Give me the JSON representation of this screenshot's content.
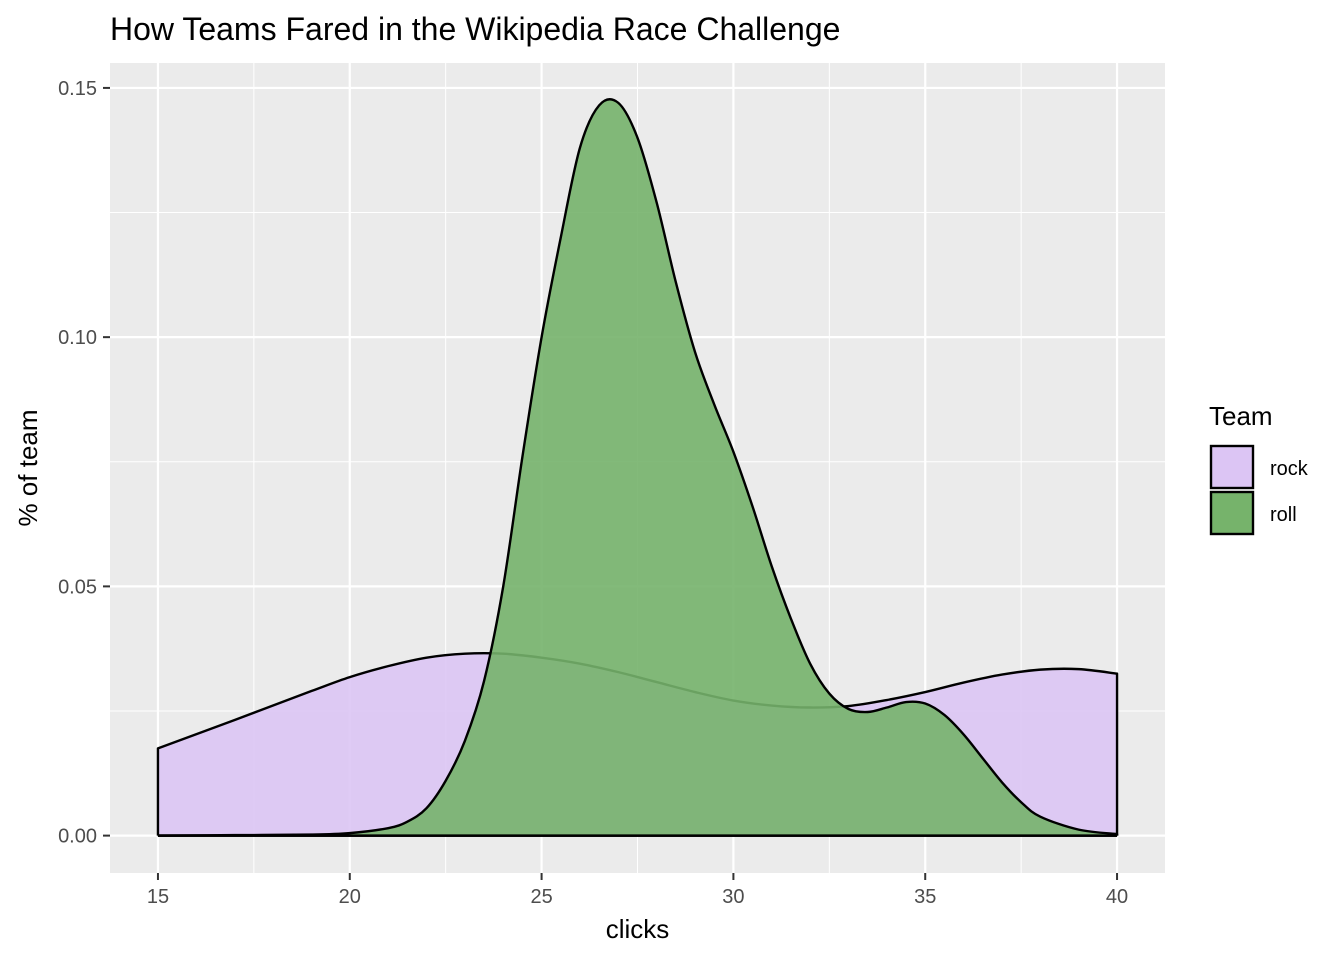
{
  "chart_data": {
    "type": "area",
    "title": "How Teams Fared in the Wikipedia Race Challenge",
    "xlabel": "clicks",
    "ylabel": "% of team",
    "xlim": [
      13.75,
      41.25
    ],
    "ylim": [
      -0.0075,
      0.155
    ],
    "x_ticks": [
      15,
      20,
      25,
      30,
      35,
      40
    ],
    "x_tick_labels": [
      "15",
      "20",
      "25",
      "30",
      "35",
      "40"
    ],
    "y_ticks": [
      0,
      0.05,
      0.1,
      0.15
    ],
    "y_tick_labels": [
      "0.00",
      "0.05",
      "0.10",
      "0.15"
    ],
    "grid": true,
    "legend": {
      "title": "Team",
      "position": "right"
    },
    "series": [
      {
        "name": "rock",
        "color": "#dcc5f4",
        "x": [
          15,
          17,
          19,
          20,
          21,
          22,
          23,
          24,
          25,
          26,
          27,
          28,
          29,
          30,
          31,
          32,
          33,
          34,
          35,
          36,
          37,
          38,
          39,
          40
        ],
        "y": [
          0.0175,
          0.0232,
          0.029,
          0.0318,
          0.034,
          0.0357,
          0.0365,
          0.0365,
          0.0357,
          0.0345,
          0.0328,
          0.0308,
          0.0288,
          0.0271,
          0.0261,
          0.0257,
          0.026,
          0.0272,
          0.0288,
          0.0307,
          0.0323,
          0.0333,
          0.0334,
          0.0325
        ]
      },
      {
        "name": "roll",
        "color": "#76b36b",
        "x": [
          15,
          17,
          19,
          20,
          21,
          21.5,
          22,
          22.5,
          23,
          23.5,
          24,
          24.5,
          25,
          25.5,
          26,
          26.5,
          27,
          27.5,
          28,
          28.5,
          29,
          29.5,
          30,
          30.5,
          31,
          31.5,
          32,
          32.5,
          33,
          33.5,
          34,
          34.5,
          35,
          35.5,
          36,
          36.5,
          37,
          37.5,
          38,
          39,
          40
        ],
        "y": [
          0,
          0.0001,
          0.0002,
          0.0005,
          0.0015,
          0.0028,
          0.0055,
          0.011,
          0.019,
          0.031,
          0.05,
          0.076,
          0.1,
          0.12,
          0.138,
          0.1465,
          0.147,
          0.14,
          0.127,
          0.111,
          0.097,
          0.0865,
          0.077,
          0.066,
          0.054,
          0.0435,
          0.0345,
          0.0285,
          0.0254,
          0.0248,
          0.0257,
          0.0268,
          0.0265,
          0.0242,
          0.0203,
          0.0155,
          0.0107,
          0.0067,
          0.0038,
          0.0012,
          0.0003
        ]
      }
    ]
  }
}
